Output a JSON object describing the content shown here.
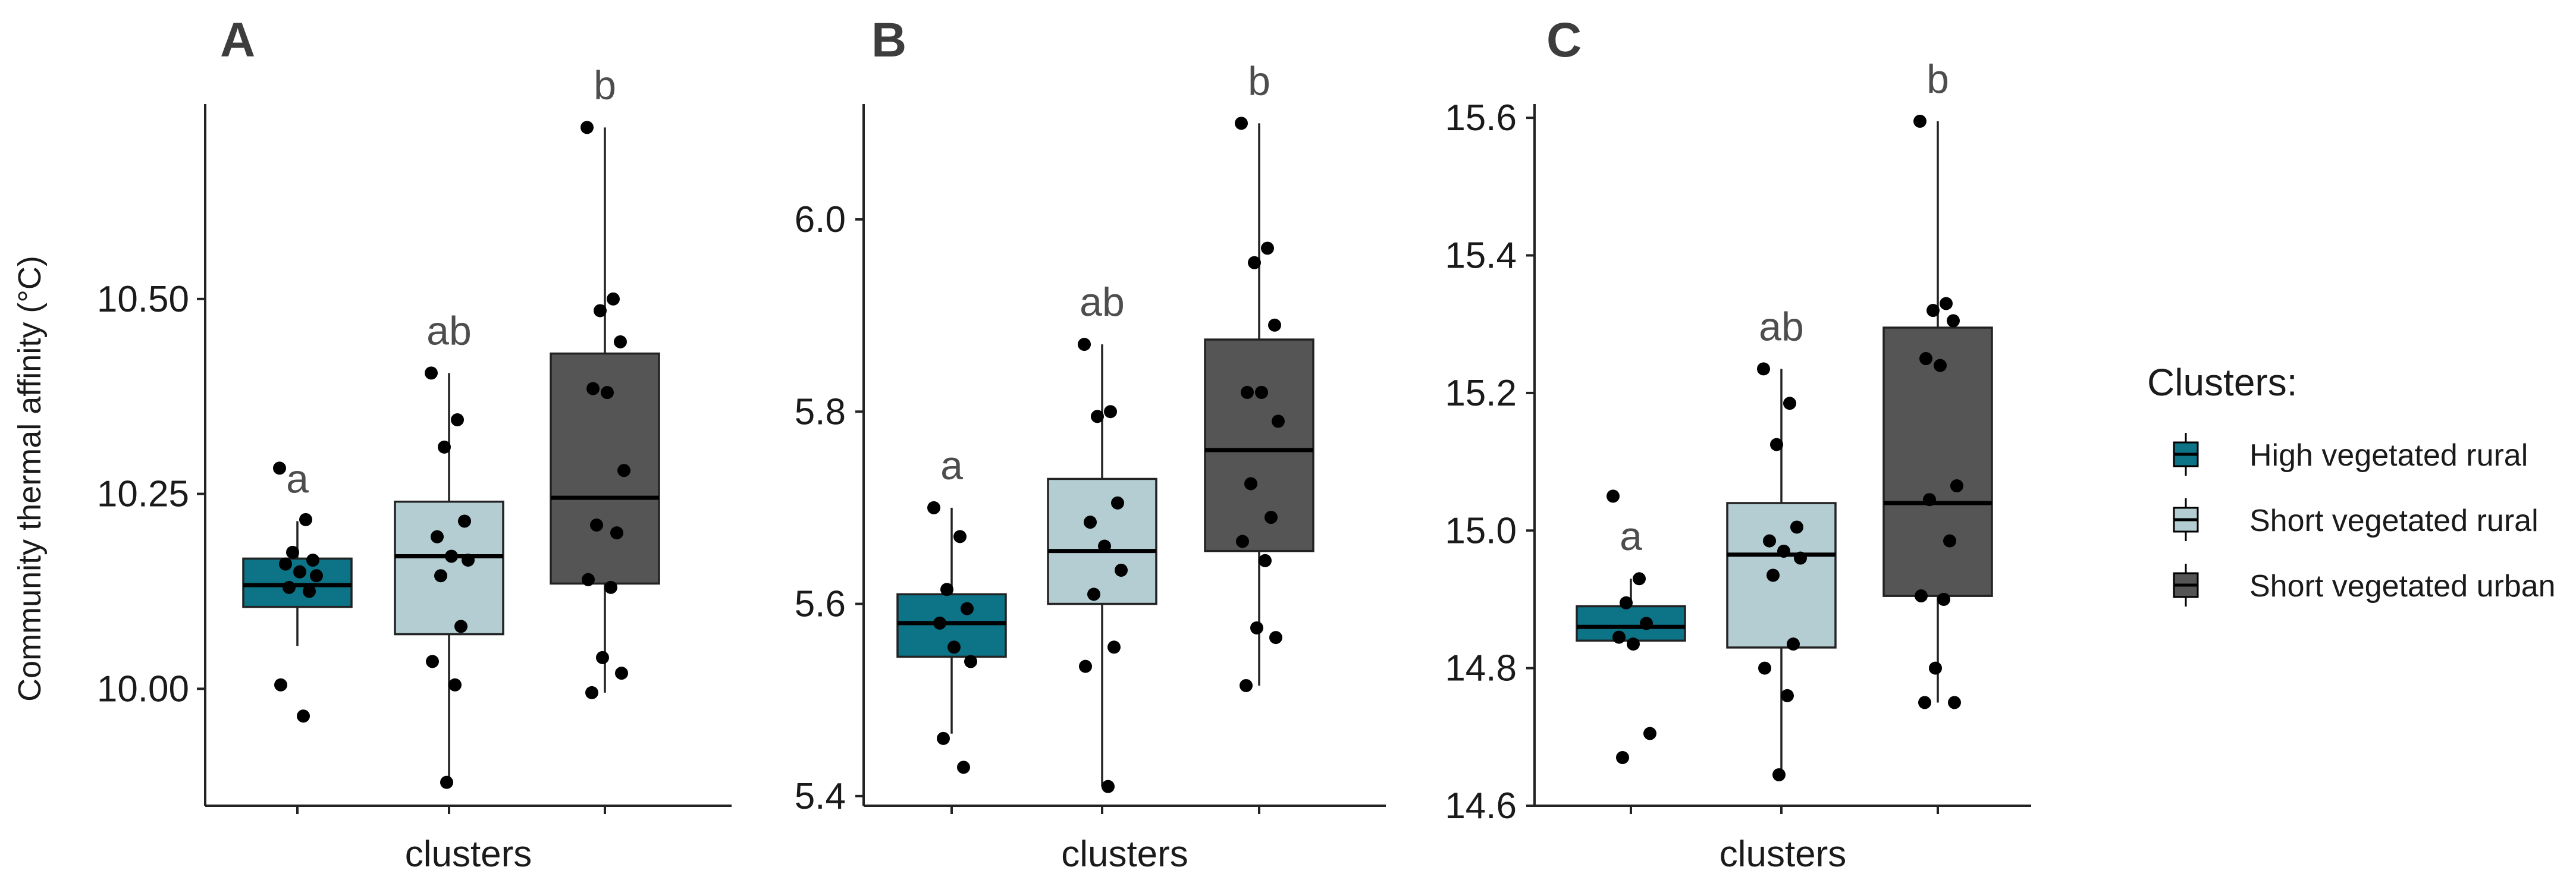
{
  "legend": {
    "title": "Clusters:",
    "items": [
      {
        "label": "High vegetated rural",
        "color": "#0d7386"
      },
      {
        "label": "Short vegetated rural",
        "color": "#b3cdd2"
      },
      {
        "label": "Short vegetated urban",
        "color": "#555555"
      }
    ]
  },
  "chart_data": [
    {
      "type": "box",
      "panel": "A",
      "xlabel": "clusters",
      "ylabel": "Community thermal affinity (°C)",
      "ylim": [
        9.85,
        10.75
      ],
      "yticks": [
        10.0,
        10.25,
        10.5
      ],
      "ytick_labels": [
        "10.00",
        "10.25",
        "10.50"
      ],
      "groups": [
        {
          "cluster": "High vegetated rural",
          "letter": "a",
          "min": 10.055,
          "q1": 10.105,
          "median": 10.133,
          "q3": 10.167,
          "max": 10.215,
          "points": [
            10.283,
            10.217,
            10.175,
            10.165,
            10.16,
            10.15,
            10.145,
            10.13,
            10.125,
            10.005,
            9.965
          ]
        },
        {
          "cluster": "Short vegetated rural",
          "letter": "ab",
          "min": 9.88,
          "q1": 10.07,
          "median": 10.17,
          "q3": 10.24,
          "max": 10.405,
          "points": [
            10.405,
            10.345,
            10.31,
            10.215,
            10.195,
            10.17,
            10.165,
            10.145,
            10.08,
            10.035,
            10.005,
            9.88
          ]
        },
        {
          "cluster": "Short vegetated urban",
          "letter": "b",
          "min": 9.995,
          "q1": 10.135,
          "median": 10.245,
          "q3": 10.43,
          "max": 10.72,
          "points": [
            10.72,
            10.5,
            10.485,
            10.445,
            10.385,
            10.38,
            10.28,
            10.21,
            10.2,
            10.14,
            10.13,
            10.04,
            10.02,
            9.995
          ]
        }
      ]
    },
    {
      "type": "box",
      "panel": "B",
      "xlabel": "clusters",
      "ylabel": "",
      "ylim": [
        5.39,
        6.12
      ],
      "yticks": [
        5.4,
        5.6,
        5.8,
        6.0
      ],
      "ytick_labels": [
        "5.4",
        "5.6",
        "5.8",
        "6.0"
      ],
      "groups": [
        {
          "cluster": "High vegetated rural",
          "letter": "a",
          "min": 5.465,
          "q1": 5.545,
          "median": 5.58,
          "q3": 5.61,
          "max": 5.7,
          "points": [
            5.7,
            5.67,
            5.615,
            5.595,
            5.58,
            5.555,
            5.54,
            5.46,
            5.43
          ]
        },
        {
          "cluster": "Short vegetated rural",
          "letter": "ab",
          "min": 5.41,
          "q1": 5.6,
          "median": 5.655,
          "q3": 5.73,
          "max": 5.87,
          "points": [
            5.87,
            5.8,
            5.795,
            5.705,
            5.685,
            5.66,
            5.635,
            5.61,
            5.555,
            5.535,
            5.41
          ]
        },
        {
          "cluster": "Short vegetated urban",
          "letter": "b",
          "min": 5.515,
          "q1": 5.655,
          "median": 5.76,
          "q3": 5.875,
          "max": 6.1,
          "points": [
            6.1,
            5.97,
            5.955,
            5.89,
            5.82,
            5.82,
            5.79,
            5.725,
            5.69,
            5.665,
            5.645,
            5.575,
            5.565,
            5.515
          ]
        }
      ]
    },
    {
      "type": "box",
      "panel": "C",
      "xlabel": "clusters",
      "ylabel": "",
      "ylim": [
        14.6,
        15.62
      ],
      "yticks": [
        14.6,
        14.8,
        15.0,
        15.2,
        15.4,
        15.6
      ],
      "ytick_labels": [
        "14.6",
        "14.8",
        "15.0",
        "15.2",
        "15.4",
        "15.6"
      ],
      "groups": [
        {
          "cluster": "High vegetated rural",
          "letter": "a",
          "min": 14.835,
          "q1": 14.84,
          "median": 14.86,
          "q3": 14.89,
          "max": 14.93,
          "points": [
            15.05,
            14.93,
            14.895,
            14.865,
            14.845,
            14.835,
            14.705,
            14.67
          ]
        },
        {
          "cluster": "Short vegetated rural",
          "letter": "ab",
          "min": 14.645,
          "q1": 14.83,
          "median": 14.965,
          "q3": 15.04,
          "max": 15.235,
          "points": [
            15.235,
            15.185,
            15.125,
            15.005,
            14.985,
            14.97,
            14.96,
            14.935,
            14.835,
            14.8,
            14.76,
            14.645
          ]
        },
        {
          "cluster": "Short vegetated urban",
          "letter": "b",
          "min": 14.75,
          "q1": 14.905,
          "median": 15.04,
          "q3": 15.295,
          "max": 15.595,
          "points": [
            15.595,
            15.33,
            15.32,
            15.305,
            15.25,
            15.24,
            15.065,
            15.045,
            14.985,
            14.905,
            14.9,
            14.8,
            14.75,
            14.75
          ]
        }
      ]
    }
  ]
}
